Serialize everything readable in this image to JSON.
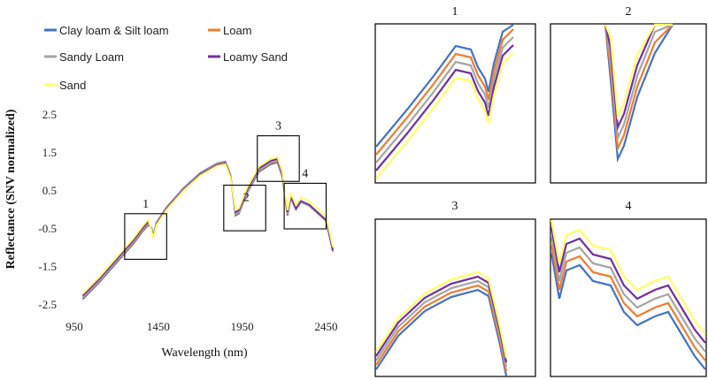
{
  "colors": {
    "clay_silt": "#4472c4",
    "loam": "#ed7d31",
    "sandy_loam": "#a5a5a5",
    "loamy_sand": "#7030a0",
    "sand": "#ffff66"
  },
  "chart_data": [
    {
      "type": "line",
      "xlabel": "Wavelength (nm)",
      "ylabel": "Reflectance (SNV normalized)",
      "xlim": [
        950,
        2500
      ],
      "ylim": [
        -2.5,
        2.5
      ],
      "xticks": [
        "950",
        "1450",
        "1950",
        "2450"
      ],
      "yticks": [
        "2.5",
        "1.5",
        "0.5",
        "-0.5",
        "-1.5",
        "-2.5"
      ],
      "legend_position": "top-left",
      "series": [
        {
          "name": "Clay loam & Silt loam",
          "color": "clay_silt"
        },
        {
          "name": "Loam",
          "color": "loam"
        },
        {
          "name": "Sandy Loam",
          "color": "sandy_loam"
        },
        {
          "name": "Loamy Sand",
          "color": "loamy_sand"
        },
        {
          "name": "Sand",
          "color": "sand"
        }
      ],
      "zoom_boxes": [
        {
          "label": "1",
          "xrange": [
            1250,
            1500
          ],
          "yrange": [
            -1.3,
            -0.1
          ]
        },
        {
          "label": "2",
          "xrange": [
            1840,
            2090
          ],
          "yrange": [
            -0.55,
            0.65
          ]
        },
        {
          "label": "3",
          "xrange": [
            2040,
            2290
          ],
          "yrange": [
            0.75,
            1.95
          ]
        },
        {
          "label": "4",
          "xrange": [
            2200,
            2450
          ],
          "yrange": [
            -0.5,
            0.7
          ]
        }
      ]
    },
    {
      "type": "line",
      "title": "1"
    },
    {
      "type": "line",
      "title": "2"
    },
    {
      "type": "line",
      "title": "3"
    },
    {
      "type": "line",
      "title": "4"
    }
  ]
}
